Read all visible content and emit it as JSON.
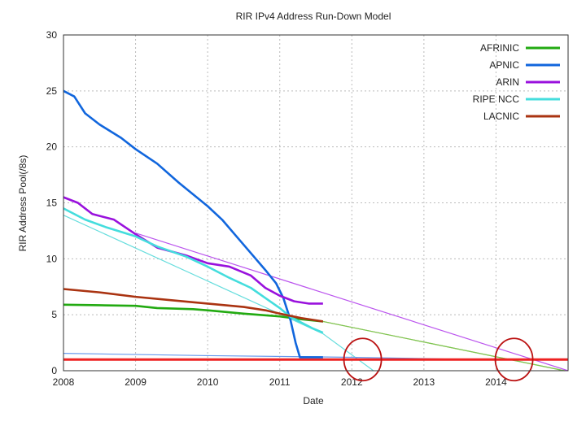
{
  "chart_data": {
    "type": "line",
    "title": "RIR IPv4 Address Run-Down Model",
    "xlabel": "Date",
    "ylabel": "RIR Address Pool(/8s)",
    "xlim": [
      2008,
      2015
    ],
    "ylim": [
      0,
      30
    ],
    "xticks": [
      2008,
      2009,
      2010,
      2011,
      2012,
      2013,
      2014
    ],
    "yticks": [
      0,
      5,
      10,
      15,
      20,
      25,
      30
    ],
    "grid": true,
    "legend_position": "top-right",
    "series": [
      {
        "name": "AFRINIC",
        "color": "#22aa11",
        "x": [
          2008,
          2008.5,
          2009,
          2009.3,
          2009.8,
          2010,
          2010.5,
          2011,
          2011.3,
          2011.6
        ],
        "y": [
          5.9,
          5.85,
          5.8,
          5.6,
          5.5,
          5.4,
          5.1,
          4.85,
          4.6,
          4.4
        ]
      },
      {
        "name": "APNIC",
        "color": "#1166dd",
        "x": [
          2008,
          2008.15,
          2008.3,
          2008.5,
          2008.8,
          2009,
          2009.3,
          2009.6,
          2010,
          2010.2,
          2010.4,
          2010.6,
          2010.8,
          2010.95,
          2011.05,
          2011.15,
          2011.22,
          2011.28,
          2011.6
        ],
        "y": [
          25,
          24.5,
          23,
          22,
          20.8,
          19.8,
          18.5,
          16.8,
          14.7,
          13.5,
          12,
          10.5,
          9,
          7.8,
          6.5,
          4.5,
          2.5,
          1.2,
          1.2
        ]
      },
      {
        "name": "ARIN",
        "color": "#9911dd",
        "x": [
          2008,
          2008.2,
          2008.4,
          2008.7,
          2009,
          2009.3,
          2009.7,
          2010,
          2010.3,
          2010.6,
          2010.8,
          2011,
          2011.2,
          2011.4,
          2011.6
        ],
        "y": [
          15.5,
          15,
          14,
          13.5,
          12.2,
          11,
          10.3,
          9.6,
          9.3,
          8.5,
          7.4,
          6.7,
          6.2,
          6.0,
          6.0
        ]
      },
      {
        "name": "RIPE NCC",
        "color": "#44dddd",
        "x": [
          2008,
          2008.3,
          2008.6,
          2009,
          2009.3,
          2009.7,
          2010,
          2010.3,
          2010.6,
          2010.8,
          2011,
          2011.15,
          2011.3,
          2011.45,
          2011.6
        ],
        "y": [
          14.5,
          13.5,
          12.8,
          12,
          11.1,
          10.2,
          9.3,
          8.3,
          7.4,
          6.5,
          5.6,
          4.8,
          4.3,
          3.8,
          3.4
        ]
      },
      {
        "name": "LACNIC",
        "color": "#aa3311",
        "x": [
          2008,
          2008.5,
          2009,
          2009.5,
          2010,
          2010.5,
          2010.8,
          2011,
          2011.3,
          2011.6
        ],
        "y": [
          7.3,
          7.0,
          6.6,
          6.3,
          6.0,
          5.7,
          5.4,
          5.1,
          4.7,
          4.4
        ]
      }
    ],
    "projections": [
      {
        "color": "#bb55ee",
        "x": [
          2009,
          2015
        ],
        "y": [
          12.3,
          0
        ]
      },
      {
        "color": "#66dddd",
        "x": [
          2008,
          2011.6,
          2012.3
        ],
        "y": [
          13.9,
          3.3,
          0
        ]
      },
      {
        "color": "#dd8844",
        "x": [
          2011.6,
          2014.95
        ],
        "y": [
          4.4,
          0
        ]
      },
      {
        "color": "#77cc55",
        "x": [
          2011.6,
          2014.95
        ],
        "y": [
          4.4,
          0
        ]
      },
      {
        "color": "#6699ee",
        "x": [
          2008,
          2010,
          2012,
          2013.3
        ],
        "y": [
          1.55,
          1.35,
          1.2,
          1.05
        ]
      }
    ],
    "threshold": {
      "color": "#ee2222",
      "y": 1
    },
    "annotations": [
      {
        "shape": "circle",
        "color": "#bb1111",
        "x": 2012.15,
        "y": 1
      },
      {
        "shape": "circle",
        "color": "#bb1111",
        "x": 2014.25,
        "y": 1
      }
    ]
  }
}
